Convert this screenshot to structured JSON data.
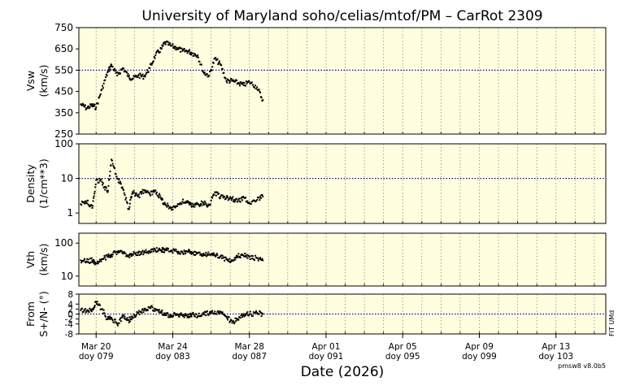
{
  "chart_data": {
    "type": "scatter",
    "title": "University of Maryland  soho/celias/mtof/PM – CarRot 2309",
    "xlabel": "Date (2026)",
    "x_ticks": [
      {
        "date": "Mar 20",
        "doy": "doy 079"
      },
      {
        "date": "Mar 24",
        "doy": "doy 083"
      },
      {
        "date": "Mar 28",
        "doy": "doy 087"
      },
      {
        "date": "Apr 01",
        "doy": "doy 091"
      },
      {
        "date": "Apr 05",
        "doy": "doy 095"
      },
      {
        "date": "Apr 09",
        "doy": "doy 099"
      },
      {
        "date": "Apr 13",
        "doy": "doy 103"
      }
    ],
    "x_range_doy": [
      78.1,
      105.6
    ],
    "background": "#ffffe0",
    "marker_color": "#000000",
    "reference_line_color": "#0000cc",
    "grid": "dotted vertical lines every day",
    "panels": [
      {
        "id": "vsw",
        "ylabel_line1": "Vsw",
        "ylabel_line2": "(km/s)",
        "scale": "linear",
        "ylim": [
          250,
          750
        ],
        "yticks": [
          "250",
          "350",
          "450",
          "550",
          "650",
          "750"
        ],
        "reference_line": 550,
        "series": [
          {
            "x": [
              78.2,
              78.5,
              78.8,
              79.0,
              79.3,
              79.6,
              79.8,
              80.1,
              80.4,
              80.7,
              80.9,
              81.2,
              81.5,
              81.8,
              82.1,
              82.4,
              82.6,
              82.9,
              83.2,
              83.5,
              83.8,
              84.0,
              84.3,
              84.6,
              84.9,
              85.2,
              85.5,
              85.8,
              86.1,
              86.4,
              86.7,
              87.0,
              87.4,
              87.7
            ],
            "y": [
              390,
              372,
              385,
              375,
              460,
              540,
              575,
              525,
              560,
              520,
              510,
              525,
              520,
              560,
              620,
              650,
              680,
              665,
              655,
              640,
              640,
              630,
              620,
              540,
              525,
              605,
              575,
              500,
              500,
              490,
              480,
              495,
              470,
              410
            ]
          }
        ]
      },
      {
        "id": "density",
        "ylabel_line1": "Density",
        "ylabel_line2": "(1/cm**3)",
        "scale": "log",
        "ylim": [
          0.5,
          100
        ],
        "yticks": [
          "1",
          "10",
          "100"
        ],
        "reference_line": 10,
        "series": [
          {
            "x": [
              78.2,
              78.5,
              78.8,
              79.0,
              79.3,
              79.6,
              79.8,
              80.1,
              80.4,
              80.7,
              80.9,
              81.2,
              81.5,
              81.8,
              82.1,
              82.4,
              82.6,
              82.9,
              83.2,
              83.5,
              83.8,
              84.0,
              84.3,
              84.6,
              84.9,
              85.2,
              85.5,
              85.8,
              86.1,
              86.4,
              86.7,
              87.0,
              87.4,
              87.7
            ],
            "y": [
              1.8,
              2.2,
              1.4,
              9.0,
              8.0,
              4.0,
              35,
              10,
              5.0,
              1.3,
              4.0,
              3.0,
              4.5,
              3.5,
              4.5,
              2.5,
              1.8,
              1.4,
              1.6,
              2.1,
              2.0,
              1.6,
              1.8,
              1.9,
              1.7,
              4.0,
              3.0,
              2.8,
              2.6,
              2.2,
              2.8,
              2.0,
              2.4,
              3.0
            ]
          }
        ]
      },
      {
        "id": "vth",
        "ylabel_line1": "Vth",
        "ylabel_line2": "(km/s)",
        "scale": "log",
        "ylim": [
          5,
          200
        ],
        "yticks": [
          "10",
          "100"
        ],
        "reference_line": null,
        "series": [
          {
            "x": [
              78.2,
              78.5,
              78.8,
              79.0,
              79.3,
              79.6,
              79.8,
              80.1,
              80.4,
              80.7,
              80.9,
              81.2,
              81.5,
              81.8,
              82.1,
              82.4,
              82.6,
              82.9,
              83.2,
              83.5,
              83.8,
              84.0,
              84.3,
              84.6,
              84.9,
              85.2,
              85.5,
              85.8,
              86.1,
              86.4,
              86.7,
              87.0,
              87.4,
              87.7
            ],
            "y": [
              30,
              28,
              30,
              24,
              33,
              38,
              45,
              55,
              48,
              42,
              45,
              50,
              52,
              55,
              60,
              62,
              60,
              58,
              56,
              55,
              54,
              52,
              50,
              48,
              45,
              42,
              40,
              32,
              30,
              40,
              42,
              38,
              35,
              30
            ]
          }
        ]
      },
      {
        "id": "from",
        "ylabel_line1": "From",
        "ylabel_line2": "S+/N- (°)",
        "scale": "linear",
        "ylim": [
          -8,
          8
        ],
        "yticks": [
          "-8",
          "-4",
          "-2",
          "0",
          "2",
          "4",
          "8"
        ],
        "reference_line": 0,
        "series": [
          {
            "x": [
              78.2,
              78.5,
              78.8,
              79.0,
              79.3,
              79.6,
              79.8,
              80.1,
              80.4,
              80.7,
              80.9,
              81.2,
              81.5,
              81.8,
              82.1,
              82.4,
              82.6,
              82.9,
              83.2,
              83.5,
              83.8,
              84.0,
              84.3,
              84.6,
              84.9,
              85.2,
              85.5,
              85.8,
              86.1,
              86.4,
              86.7,
              87.0,
              87.4,
              87.7
            ],
            "y": [
              1.5,
              1.0,
              2.0,
              5.0,
              2.0,
              -2.0,
              -1.5,
              -4.0,
              -1.0,
              -2.5,
              -1.5,
              0.5,
              1.5,
              2.5,
              2.0,
              1.0,
              -0.5,
              -0.5,
              0.0,
              -0.5,
              -1.0,
              0.0,
              -1.0,
              0.5,
              0.0,
              1.0,
              0.5,
              -1.0,
              -3.5,
              -2.0,
              0.0,
              0.0,
              0.5,
              0.0
            ]
          }
        ]
      }
    ]
  },
  "side_note": "FIT UMd",
  "version": "pmsw8 v8.0b5"
}
